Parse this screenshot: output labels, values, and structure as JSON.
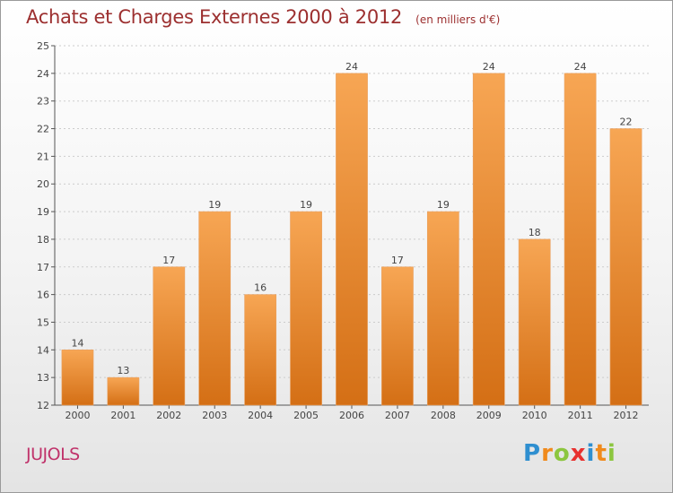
{
  "header": {
    "title": "Achats et Charges Externes 2000 à 2012",
    "unit": "(en milliers d'€)"
  },
  "footer": {
    "place": "JUJOLS",
    "logo": {
      "letters": [
        "P",
        "r",
        "o",
        "x",
        "i",
        "t",
        "i"
      ],
      "colors": [
        "#2f8fd0",
        "#f08a1c",
        "#8cc63f",
        "#e8312f",
        "#2f8fd0",
        "#f08a1c",
        "#8cc63f"
      ]
    }
  },
  "colors": {
    "bar_top": "#f7a654",
    "bar_bottom": "#d46f15",
    "title": "#9c2f2f",
    "grid": "#cccccc"
  },
  "chart_data": {
    "type": "bar",
    "title": "Achats et Charges Externes 2000 à 2012",
    "subtitle": "(en milliers d'€)",
    "xlabel": "",
    "ylabel": "",
    "categories": [
      "2000",
      "2001",
      "2002",
      "2003",
      "2004",
      "2005",
      "2006",
      "2007",
      "2008",
      "2009",
      "2010",
      "2011",
      "2012"
    ],
    "values": [
      14,
      13,
      17,
      19,
      16,
      19,
      24,
      17,
      19,
      24,
      18,
      24,
      22
    ],
    "ylim": [
      12,
      25
    ],
    "yticks": [
      12,
      13,
      14,
      15,
      16,
      17,
      18,
      19,
      20,
      21,
      22,
      23,
      24,
      25
    ],
    "grid": true,
    "legend": "none"
  }
}
